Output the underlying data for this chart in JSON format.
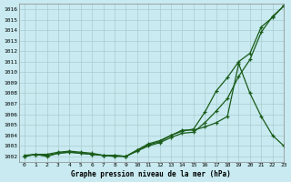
{
  "title": "Graphe pression niveau de la mer (hPa)",
  "bg_color": "#c8eaf0",
  "line_color": "#1a5c1a",
  "grid_color": "#a8ccd0",
  "xlim": [
    -0.5,
    23
  ],
  "ylim": [
    1001.5,
    1016.5
  ],
  "yticks": [
    1002,
    1003,
    1004,
    1005,
    1006,
    1007,
    1008,
    1009,
    1010,
    1011,
    1012,
    1013,
    1014,
    1015,
    1016
  ],
  "xticks": [
    0,
    1,
    2,
    3,
    4,
    5,
    6,
    7,
    8,
    9,
    10,
    11,
    12,
    13,
    14,
    15,
    16,
    17,
    18,
    19,
    20,
    21,
    22,
    23
  ],
  "series1": [
    1002.0,
    1002.2,
    1002.1,
    1002.3,
    1002.4,
    1002.3,
    1002.2,
    1002.1,
    1002.1,
    1002.0,
    1002.5,
    1003.0,
    1003.3,
    1003.8,
    1004.2,
    1004.3,
    1005.2,
    1006.3,
    1007.5,
    1009.6,
    1011.2,
    1013.8,
    1015.3,
    1016.3
  ],
  "series2": [
    1002.1,
    1002.2,
    1002.0,
    1002.3,
    1002.4,
    1002.3,
    1002.2,
    1002.1,
    1002.0,
    1002.0,
    1002.6,
    1003.1,
    1003.4,
    1004.0,
    1004.4,
    1004.6,
    1006.2,
    1008.2,
    1009.5,
    1011.0,
    1011.8,
    1014.3,
    1015.2,
    1016.3
  ],
  "series3": [
    1002.0,
    1002.2,
    1002.2,
    1002.4,
    1002.5,
    1002.4,
    1002.3,
    1002.1,
    1002.1,
    1002.0,
    1002.6,
    1003.2,
    1003.5,
    1004.0,
    1004.5,
    1004.5,
    1004.8,
    1005.2,
    1005.8,
    1010.8,
    1008.0,
    1005.8,
    1004.0,
    1003.0
  ]
}
